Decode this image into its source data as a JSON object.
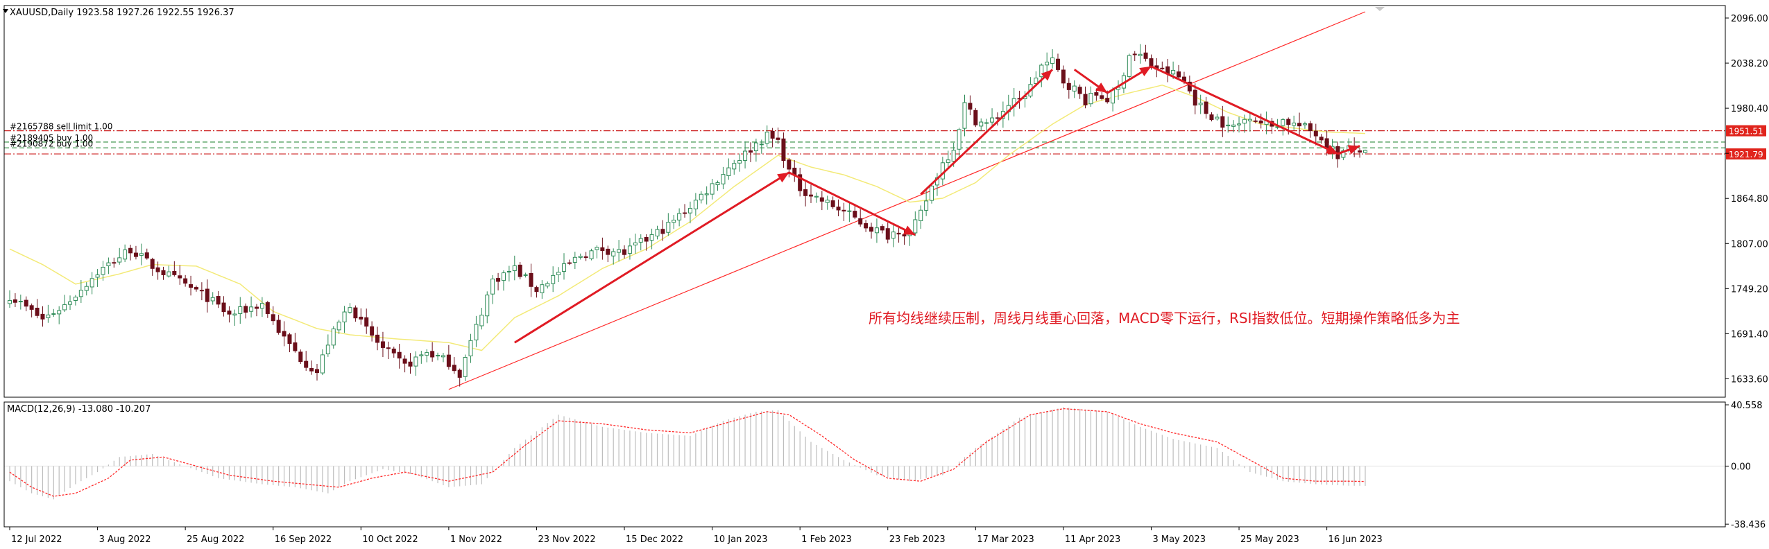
{
  "header": {
    "symbol_line": "XAUUSD,Daily  1923.58 1927.26 1922.55 1926.37",
    "triangle_icon": "triangle-down-icon"
  },
  "colors": {
    "bull": "#2e8b57",
    "bear": "#6b0f1a",
    "ma": "#f3ea78",
    "trend": "#ff2a2a",
    "arrow": "#e01b24",
    "order_red": "#cc1e1e",
    "order_green": "#2a8a3a",
    "macd_hist": "#bdbdbd",
    "macd_signal": "#ff2a2a",
    "axis": "#000000",
    "label_bg": "#e0241c"
  },
  "chart_data": [
    {
      "type": "candlestick",
      "title": "XAUUSD,Daily",
      "ohlc_last": {
        "open": 1923.58,
        "high": 1927.26,
        "low": 1922.55,
        "close": 1926.37
      },
      "ylim": [
        1610,
        2112
      ],
      "yticks": [
        2096.0,
        2038.2,
        1980.4,
        1922.6,
        1864.8,
        1807.0,
        1749.2,
        1691.4,
        1633.6
      ],
      "ytick_labels": [
        "2096.00",
        "2038.20",
        "1980.40",
        "",
        "1864.80",
        "1807.00",
        "1749.20",
        "1691.40",
        "1633.60"
      ],
      "xtick_labels": [
        {
          "label": "12 Jul 2022",
          "index": 0
        },
        {
          "label": "3 Aug 2022",
          "index": 16
        },
        {
          "label": "25 Aug 2022",
          "index": 32
        },
        {
          "label": "16 Sep 2022",
          "index": 48
        },
        {
          "label": "10 Oct 2022",
          "index": 64
        },
        {
          "label": "1 Nov 2022",
          "index": 80
        },
        {
          "label": "23 Nov 2022",
          "index": 96
        },
        {
          "label": "15 Dec 2022",
          "index": 112
        },
        {
          "label": "10 Jan 2023",
          "index": 128
        },
        {
          "label": "1 Feb 2023",
          "index": 144
        },
        {
          "label": "23 Feb 2023",
          "index": 160
        },
        {
          "label": "17 Mar 2023",
          "index": 176
        },
        {
          "label": "11 Apr 2023",
          "index": 192
        },
        {
          "label": "3 May 2023",
          "index": 208
        },
        {
          "label": "25 May 2023",
          "index": 224
        },
        {
          "label": "16 Jun 2023",
          "index": 240
        }
      ],
      "bar_count": 248,
      "anchors": [
        [
          0,
          1740
        ],
        [
          6,
          1710
        ],
        [
          10,
          1728
        ],
        [
          16,
          1770
        ],
        [
          22,
          1800
        ],
        [
          26,
          1778
        ],
        [
          30,
          1762
        ],
        [
          36,
          1738
        ],
        [
          40,
          1715
        ],
        [
          46,
          1730
        ],
        [
          50,
          1685
        ],
        [
          53,
          1660
        ],
        [
          56,
          1642
        ],
        [
          58,
          1680
        ],
        [
          62,
          1730
        ],
        [
          64,
          1705
        ],
        [
          68,
          1672
        ],
        [
          72,
          1650
        ],
        [
          76,
          1668
        ],
        [
          80,
          1655
        ],
        [
          82,
          1640
        ],
        [
          84,
          1680
        ],
        [
          88,
          1760
        ],
        [
          92,
          1775
        ],
        [
          96,
          1748
        ],
        [
          100,
          1770
        ],
        [
          104,
          1792
        ],
        [
          108,
          1800
        ],
        [
          112,
          1795
        ],
        [
          116,
          1812
        ],
        [
          120,
          1830
        ],
        [
          124,
          1855
        ],
        [
          128,
          1882
        ],
        [
          132,
          1912
        ],
        [
          134,
          1922
        ],
        [
          136,
          1935
        ],
        [
          138,
          1945
        ],
        [
          140,
          1938
        ],
        [
          142,
          1900
        ],
        [
          144,
          1878
        ],
        [
          148,
          1862
        ],
        [
          152,
          1848
        ],
        [
          156,
          1830
        ],
        [
          160,
          1818
        ],
        [
          162,
          1825
        ],
        [
          164,
          1818
        ],
        [
          166,
          1845
        ],
        [
          168,
          1880
        ],
        [
          170,
          1910
        ],
        [
          172,
          1930
        ],
        [
          174,
          1985
        ],
        [
          176,
          1965
        ],
        [
          178,
          1960
        ],
        [
          180,
          1970
        ],
        [
          182,
          1985
        ],
        [
          184,
          1990
        ],
        [
          186,
          2008
        ],
        [
          188,
          2035
        ],
        [
          190,
          2040
        ],
        [
          192,
          2015
        ],
        [
          194,
          2005
        ],
        [
          196,
          1990
        ],
        [
          198,
          1998
        ],
        [
          200,
          1992
        ],
        [
          202,
          2005
        ],
        [
          204,
          2050
        ],
        [
          206,
          2048
        ],
        [
          208,
          2035
        ],
        [
          210,
          2028
        ],
        [
          212,
          2025
        ],
        [
          214,
          2015
        ],
        [
          216,
          1990
        ],
        [
          218,
          1975
        ],
        [
          220,
          1968
        ],
        [
          222,
          1955
        ],
        [
          224,
          1960
        ],
        [
          226,
          1972
        ],
        [
          228,
          1962
        ],
        [
          230,
          1958
        ],
        [
          232,
          1965
        ],
        [
          234,
          1960
        ],
        [
          236,
          1955
        ],
        [
          238,
          1948
        ],
        [
          240,
          1935
        ],
        [
          242,
          1920
        ],
        [
          244,
          1928
        ],
        [
          247,
          1926.37
        ]
      ],
      "ma_anchors": [
        [
          0,
          1800
        ],
        [
          6,
          1780
        ],
        [
          12,
          1755
        ],
        [
          20,
          1768
        ],
        [
          26,
          1780
        ],
        [
          34,
          1778
        ],
        [
          42,
          1755
        ],
        [
          48,
          1720
        ],
        [
          56,
          1698
        ],
        [
          62,
          1690
        ],
        [
          70,
          1685
        ],
        [
          80,
          1680
        ],
        [
          86,
          1670
        ],
        [
          92,
          1712
        ],
        [
          100,
          1740
        ],
        [
          108,
          1775
        ],
        [
          116,
          1800
        ],
        [
          124,
          1835
        ],
        [
          132,
          1880
        ],
        [
          140,
          1920
        ],
        [
          146,
          1905
        ],
        [
          152,
          1895
        ],
        [
          158,
          1880
        ],
        [
          164,
          1860
        ],
        [
          170,
          1865
        ],
        [
          176,
          1885
        ],
        [
          182,
          1920
        ],
        [
          190,
          1960
        ],
        [
          196,
          1985
        ],
        [
          204,
          2000
        ],
        [
          210,
          2010
        ],
        [
          216,
          1995
        ],
        [
          222,
          1975
        ],
        [
          228,
          1960
        ],
        [
          234,
          1955
        ],
        [
          240,
          1950
        ],
        [
          247,
          1948
        ]
      ],
      "trendline": {
        "from": [
          80,
          1620
        ],
        "to": [
          247,
          2104
        ]
      },
      "arrows": [
        {
          "from": [
            92,
            1680
          ],
          "to": [
            142,
            1898
          ]
        },
        {
          "from": [
            142,
            1898
          ],
          "to": [
            165,
            1818
          ]
        },
        {
          "from": [
            166,
            1870
          ],
          "to": [
            190,
            2030
          ]
        },
        {
          "from": [
            194,
            2030
          ],
          "to": [
            200,
            2000
          ]
        },
        {
          "from": [
            200,
            2000
          ],
          "to": [
            208,
            2034
          ]
        },
        {
          "from": [
            208,
            2034
          ],
          "to": [
            242,
            1922
          ]
        },
        {
          "from": [
            242,
            1922
          ],
          "to": [
            246,
            1932
          ]
        }
      ],
      "orders": [
        {
          "label": "#2165788 sell limit 1.00",
          "price": 1951.51,
          "color": "red"
        },
        {
          "label": "#2189405 buy 1.00",
          "price": 1937.0,
          "color": "green"
        },
        {
          "label": "#2190872 buy 1.00",
          "price": 1929.5,
          "color": "green"
        },
        {
          "label": "",
          "price": 1921.79,
          "color": "red"
        }
      ],
      "price_labels": [
        {
          "label": "1951.51",
          "price": 1951.51
        },
        {
          "label": "1921.79",
          "price": 1921.79
        }
      ],
      "annotation": "所有均线继续压制，周线月线重心回落，MACD零下运行，RSI指数低位。短期操作策略低多为主"
    },
    {
      "type": "macd",
      "title": "MACD(12,26,9) -13.080 -10.207",
      "params": [
        12,
        26,
        9
      ],
      "macd_value": -13.08,
      "signal_value": -10.207,
      "ylim": [
        -40.2,
        42.4
      ],
      "ytick_labels": [
        "40.558",
        "0.00",
        "-38.436"
      ],
      "yticks": [
        40.558,
        0.0,
        -38.436
      ],
      "macd_anchors": [
        [
          0,
          -10
        ],
        [
          4,
          -18
        ],
        [
          8,
          -22
        ],
        [
          12,
          -12
        ],
        [
          16,
          -4
        ],
        [
          20,
          6
        ],
        [
          26,
          8
        ],
        [
          32,
          0
        ],
        [
          38,
          -8
        ],
        [
          46,
          -12
        ],
        [
          52,
          -14
        ],
        [
          58,
          -18
        ],
        [
          62,
          -10
        ],
        [
          68,
          -2
        ],
        [
          74,
          -6
        ],
        [
          80,
          -14
        ],
        [
          86,
          -12
        ],
        [
          92,
          12
        ],
        [
          100,
          34
        ],
        [
          108,
          26
        ],
        [
          116,
          22
        ],
        [
          124,
          20
        ],
        [
          130,
          30
        ],
        [
          136,
          36
        ],
        [
          140,
          37
        ],
        [
          146,
          16
        ],
        [
          152,
          4
        ],
        [
          158,
          -6
        ],
        [
          164,
          -10
        ],
        [
          170,
          -6
        ],
        [
          176,
          12
        ],
        [
          184,
          32
        ],
        [
          192,
          39
        ],
        [
          200,
          36
        ],
        [
          206,
          26
        ],
        [
          212,
          18
        ],
        [
          220,
          12
        ],
        [
          226,
          -4
        ],
        [
          232,
          -10
        ],
        [
          238,
          -12
        ],
        [
          244,
          -13
        ],
        [
          247,
          -13.08
        ]
      ],
      "signal_anchors": [
        [
          0,
          -4
        ],
        [
          4,
          -14
        ],
        [
          8,
          -20
        ],
        [
          12,
          -18
        ],
        [
          18,
          -8
        ],
        [
          22,
          4
        ],
        [
          28,
          6
        ],
        [
          34,
          0
        ],
        [
          40,
          -6
        ],
        [
          48,
          -10
        ],
        [
          54,
          -12
        ],
        [
          60,
          -14
        ],
        [
          66,
          -8
        ],
        [
          72,
          -4
        ],
        [
          80,
          -10
        ],
        [
          88,
          -4
        ],
        [
          94,
          14
        ],
        [
          100,
          30
        ],
        [
          108,
          28
        ],
        [
          116,
          24
        ],
        [
          124,
          22
        ],
        [
          132,
          30
        ],
        [
          138,
          36
        ],
        [
          142,
          34
        ],
        [
          148,
          20
        ],
        [
          154,
          4
        ],
        [
          160,
          -8
        ],
        [
          166,
          -10
        ],
        [
          172,
          -2
        ],
        [
          178,
          16
        ],
        [
          186,
          34
        ],
        [
          192,
          38
        ],
        [
          200,
          36
        ],
        [
          206,
          28
        ],
        [
          212,
          22
        ],
        [
          220,
          16
        ],
        [
          226,
          4
        ],
        [
          232,
          -8
        ],
        [
          238,
          -10
        ],
        [
          244,
          -10
        ],
        [
          247,
          -10.207
        ]
      ]
    }
  ]
}
